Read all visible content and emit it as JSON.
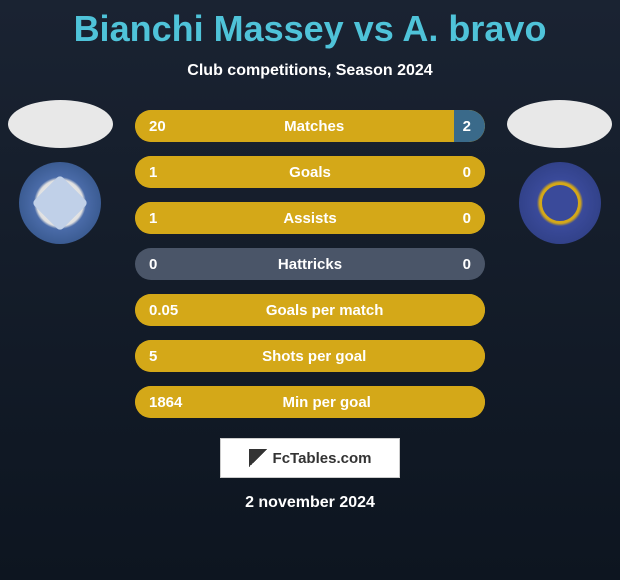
{
  "title": "Bianchi Massey vs A. bravo",
  "subtitle": "Club competitions, Season 2024",
  "date": "2 november 2024",
  "watermark": "FcTables.com",
  "colors": {
    "title": "#4fc3d9",
    "bar_left": "#d4a818",
    "bar_right": "#3a6a8a",
    "bar_empty": "#4a5568"
  },
  "stats": [
    {
      "label": "Matches",
      "left_value": "20",
      "right_value": "2",
      "left_pct": 91,
      "right_pct": 9
    },
    {
      "label": "Goals",
      "left_value": "1",
      "right_value": "0",
      "left_pct": 100,
      "right_pct": 0
    },
    {
      "label": "Assists",
      "left_value": "1",
      "right_value": "0",
      "left_pct": 100,
      "right_pct": 0
    },
    {
      "label": "Hattricks",
      "left_value": "0",
      "right_value": "0",
      "left_pct": 0,
      "right_pct": 0
    },
    {
      "label": "Goals per match",
      "left_value": "0.05",
      "right_value": "",
      "left_pct": 100,
      "right_pct": 0
    },
    {
      "label": "Shots per goal",
      "left_value": "5",
      "right_value": "",
      "left_pct": 100,
      "right_pct": 0
    },
    {
      "label": "Min per goal",
      "left_value": "1864",
      "right_value": "",
      "left_pct": 100,
      "right_pct": 0
    }
  ]
}
